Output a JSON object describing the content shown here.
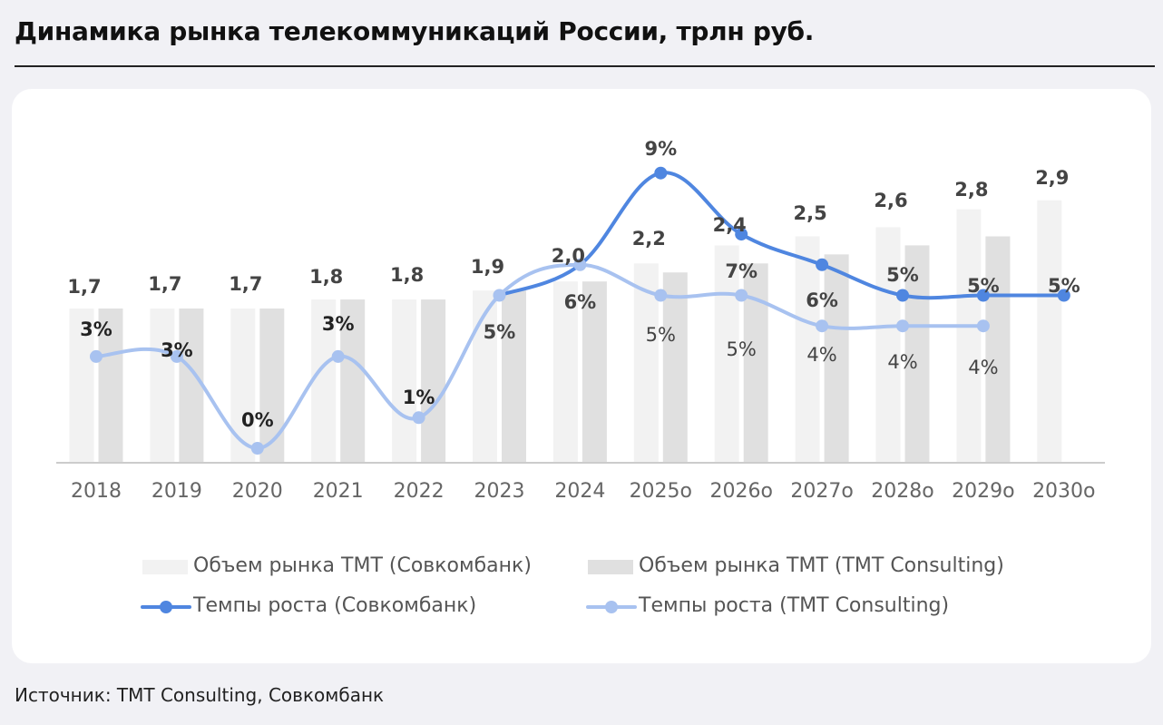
{
  "title": "Динамика рынка телекоммуникаций России, трлн руб.",
  "source": "Источник: TMT Consulting, Совкомбанк",
  "colors": {
    "bar_sovcom": "#f2f2f2",
    "bar_tmt": "#e0e0e0",
    "line_sovcom": "#4f86e0",
    "line_tmt": "#a8c2f0",
    "axis": "#cccccc",
    "label_dark": "#333333",
    "label_mid": "#444444"
  },
  "chart_data": {
    "type": "bar",
    "categories": [
      "2018",
      "2019",
      "2020",
      "2021",
      "2022",
      "2023",
      "2024",
      "2025о",
      "2026о",
      "2027о",
      "2028о",
      "2029о",
      "2030о"
    ],
    "series": [
      {
        "name": "Объем рынка ТМТ (Совкомбанк)",
        "kind": "bar",
        "values": [
          1.7,
          1.7,
          1.7,
          1.8,
          1.8,
          1.9,
          2.0,
          2.2,
          2.4,
          2.5,
          2.6,
          2.8,
          2.9
        ]
      },
      {
        "name": "Объем рынка ТМТ (TMT Consulting)",
        "kind": "bar",
        "values": [
          1.7,
          1.7,
          1.7,
          1.8,
          1.8,
          1.9,
          2.0,
          2.1,
          2.2,
          2.3,
          2.4,
          2.5,
          null
        ]
      },
      {
        "name": "Темпы роста (Совкомбанк)",
        "kind": "line",
        "unit": "%",
        "values": [
          3,
          3,
          0,
          3,
          1,
          5,
          6,
          9,
          7,
          6,
          5,
          5,
          5
        ]
      },
      {
        "name": "Темпы роста (TMT Consulting)",
        "kind": "line",
        "unit": "%",
        "values": [
          3,
          3,
          0,
          3,
          1,
          5,
          6,
          5,
          5,
          4,
          4,
          4,
          null
        ]
      }
    ],
    "bar_labels": [
      "1,7",
      "1,7",
      "1,7",
      "1,8",
      "1,8",
      "1,9",
      "2,0",
      "2,2",
      "2,4",
      "2,5",
      "2,6",
      "2,8",
      "2,9"
    ],
    "sovcom_rate_labels": [
      "3%",
      "3%",
      "0%",
      "3%",
      "1%",
      "5%",
      "6%",
      "9%",
      "7%",
      "6%",
      "5%",
      "5%",
      "5%"
    ],
    "tmt_rate_labels": [
      "",
      "",
      "",
      "",
      "",
      "",
      "",
      "5%",
      "5%",
      "4%",
      "4%",
      "4%",
      ""
    ],
    "bar_ylim": [
      0,
      3.2
    ],
    "legend": [
      "Объем рынка ТМТ (Совкомбанк)",
      "Объем рынка ТМТ (TMT Consulting)",
      "Темпы роста (Совкомбанк)",
      "Темпы роста (TMT Consulting)"
    ],
    "legend_position": "bottom",
    "grid": false
  }
}
